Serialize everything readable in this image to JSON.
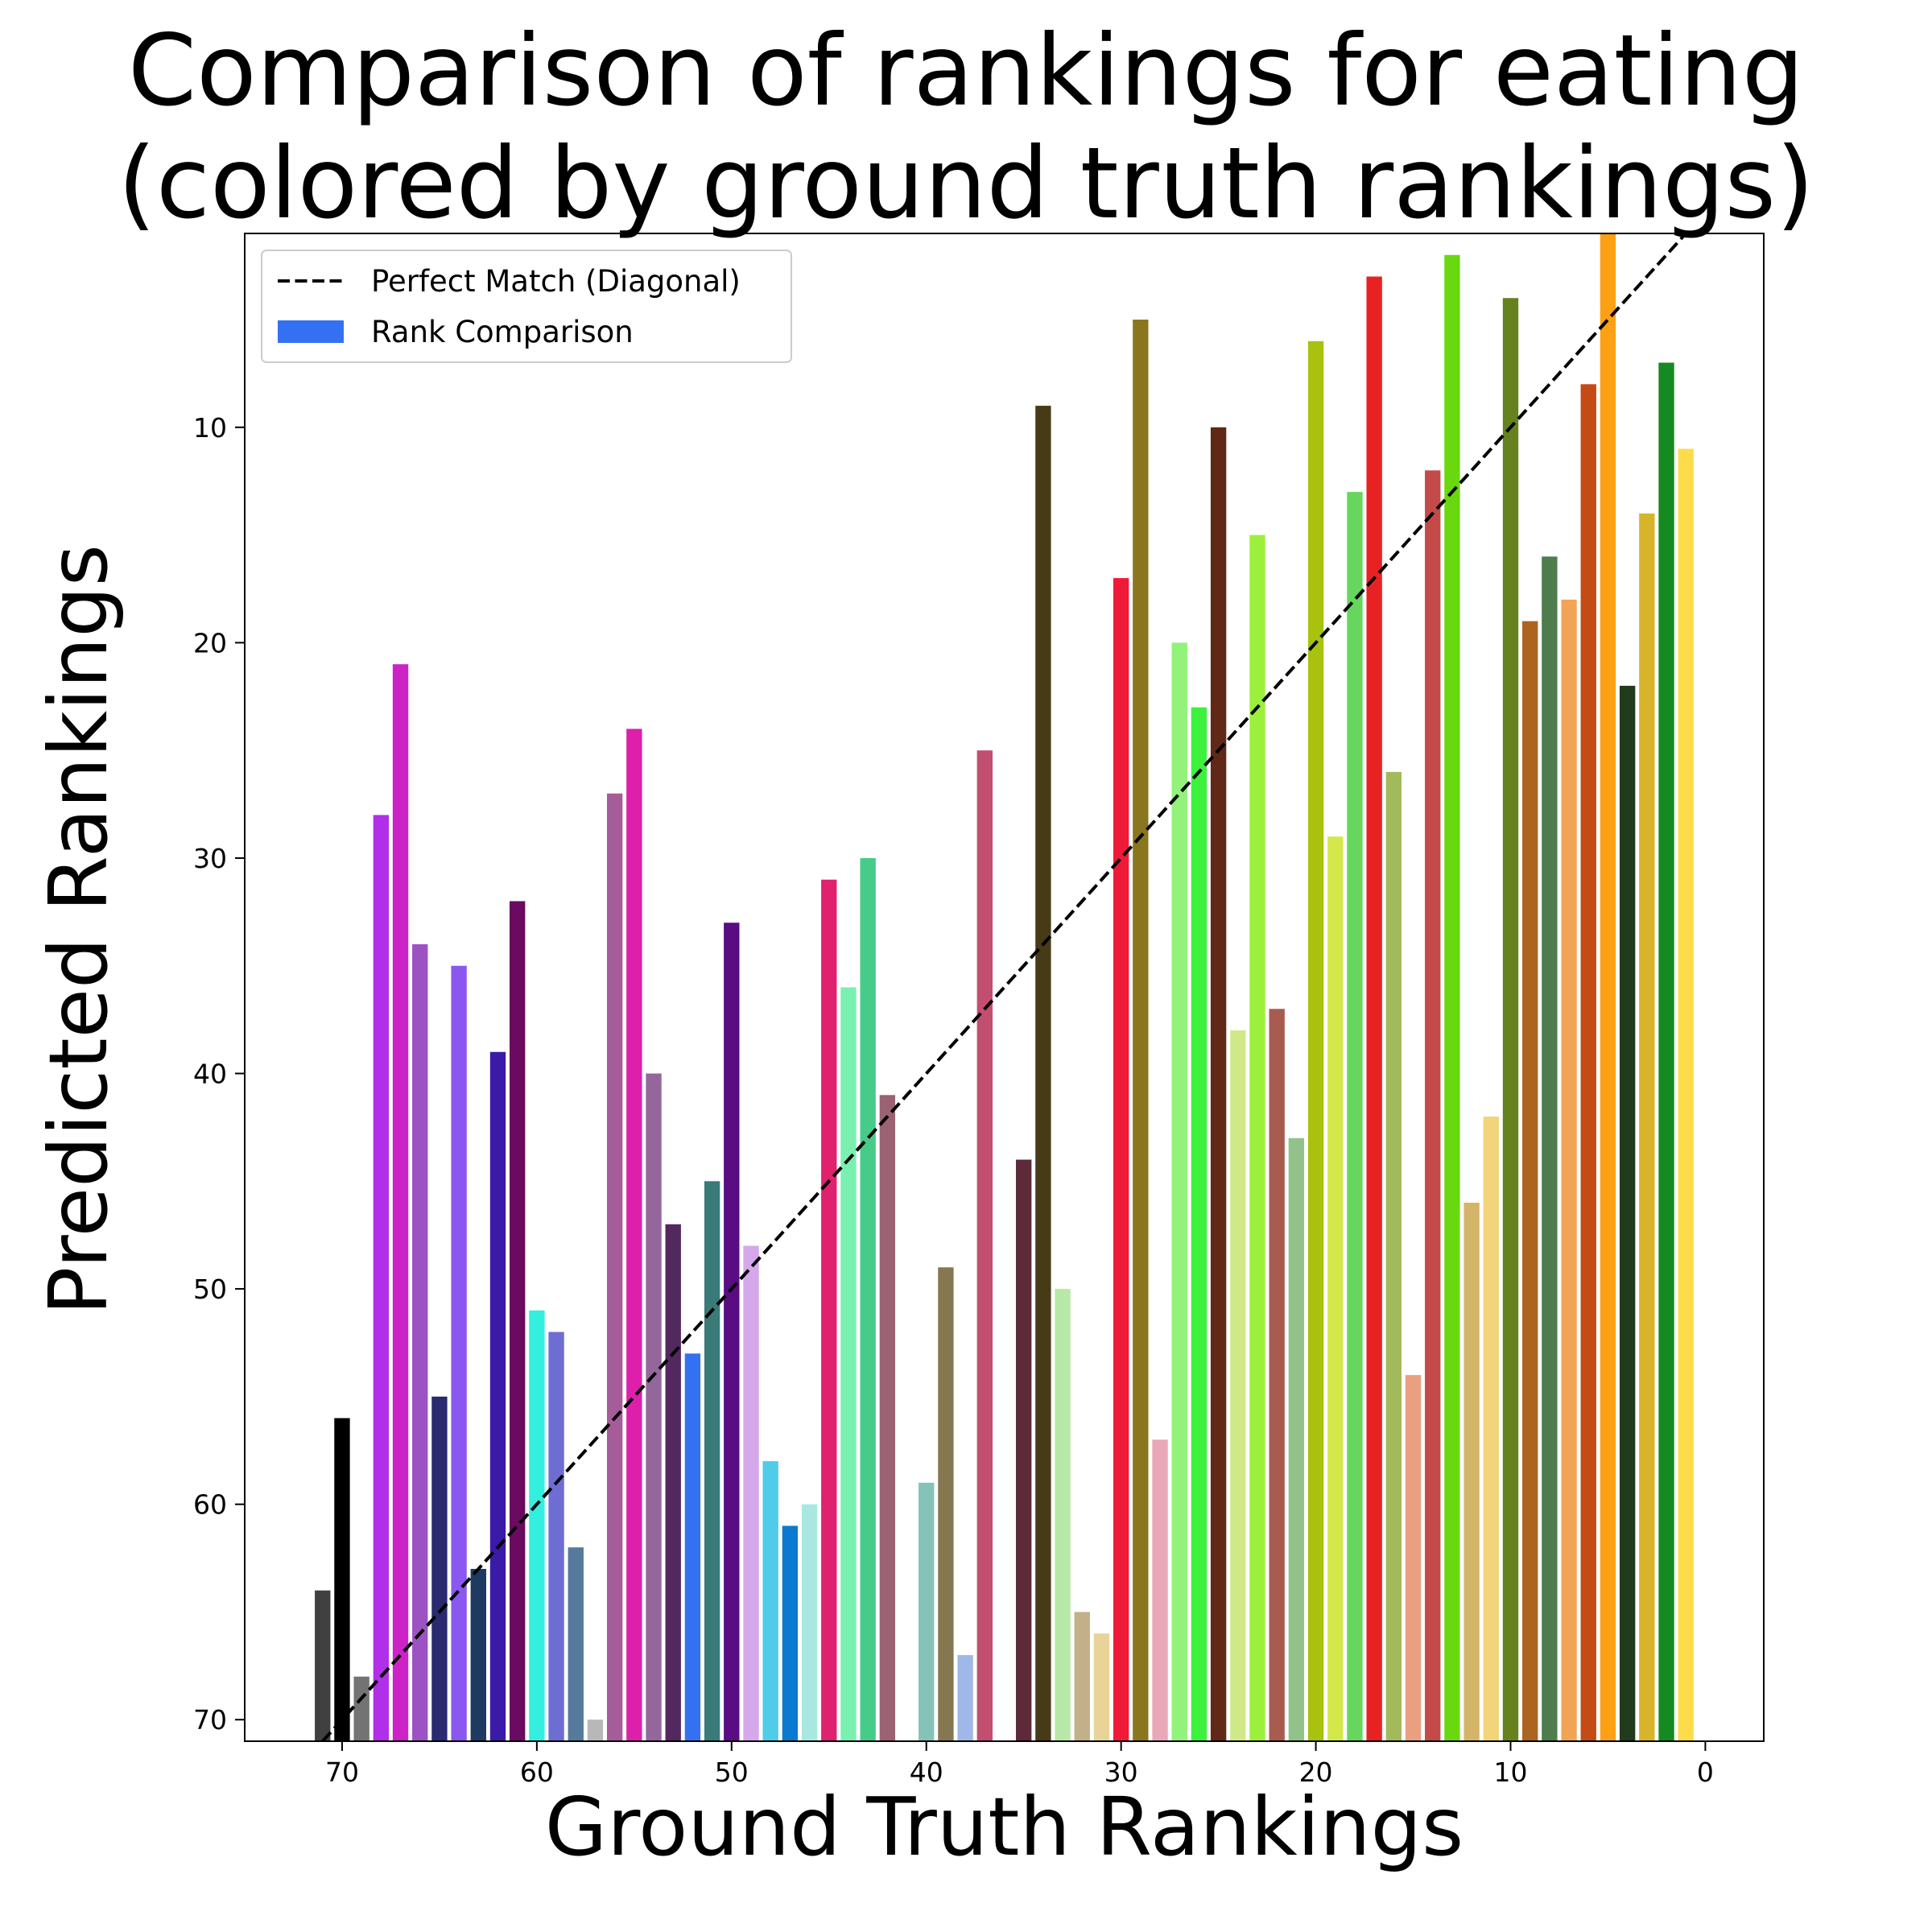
{
  "chart_data": {
    "type": "bar",
    "title_lines": [
      "Comparison of rankings for eating",
      "(colored by ground truth rankings)"
    ],
    "xlabel": "Ground Truth Rankings",
    "ylabel": "Predicted Rankings",
    "xlim": [
      75,
      -3
    ],
    "ylim": [
      71,
      1
    ],
    "y_inverted": true,
    "x_inverted": true,
    "bars_anchor": "bottom",
    "xticks": [
      70,
      60,
      50,
      40,
      30,
      20,
      10,
      0
    ],
    "yticks": [
      10,
      20,
      30,
      40,
      50,
      60,
      70
    ],
    "legend": {
      "placement": "upper-left",
      "entries": [
        {
          "label": "Perfect Match (Diagonal)",
          "kind": "dashed-line",
          "color": "#000000"
        },
        {
          "label": "Rank Comparison",
          "kind": "patch",
          "color": "#3471f2"
        }
      ]
    },
    "diagonal": {
      "style": "dashed",
      "color": "#000000"
    },
    "bars": [
      {
        "x": 71,
        "y": 64,
        "color": "#404040"
      },
      {
        "x": 70,
        "y": 56,
        "color": "#000000"
      },
      {
        "x": 69,
        "y": 68,
        "color": "#737373"
      },
      {
        "x": 68,
        "y": 28,
        "color": "#b12fe8"
      },
      {
        "x": 67,
        "y": 21,
        "color": "#cd22c5"
      },
      {
        "x": 66,
        "y": 34,
        "color": "#9c52c2"
      },
      {
        "x": 65,
        "y": 55,
        "color": "#2a2a70"
      },
      {
        "x": 64,
        "y": 35,
        "color": "#8a58f0"
      },
      {
        "x": 63,
        "y": 63,
        "color": "#1e3a60"
      },
      {
        "x": 62,
        "y": 39,
        "color": "#3a1aa8"
      },
      {
        "x": 61,
        "y": 32,
        "color": "#6a0a60"
      },
      {
        "x": 60,
        "y": 51,
        "color": "#33efe0"
      },
      {
        "x": 59,
        "y": 52,
        "color": "#6d6dd3"
      },
      {
        "x": 58,
        "y": 62,
        "color": "#557a9c"
      },
      {
        "x": 57,
        "y": 70,
        "color": "#b8b8b8"
      },
      {
        "x": 56,
        "y": 27,
        "color": "#a65c98"
      },
      {
        "x": 55,
        "y": 24,
        "color": "#de1fac"
      },
      {
        "x": 54,
        "y": 40,
        "color": "#94679c"
      },
      {
        "x": 53,
        "y": 47,
        "color": "#52285e"
      },
      {
        "x": 52,
        "y": 53,
        "color": "#3471f2"
      },
      {
        "x": 51,
        "y": 45,
        "color": "#3a7a78"
      },
      {
        "x": 50,
        "y": 33,
        "color": "#5a0c82"
      },
      {
        "x": 49,
        "y": 48,
        "color": "#d4a8ea"
      },
      {
        "x": 48,
        "y": 58,
        "color": "#50cbe8"
      },
      {
        "x": 47,
        "y": 61,
        "color": "#0a7ad0"
      },
      {
        "x": 46,
        "y": 60,
        "color": "#a8e8e0"
      },
      {
        "x": 45,
        "y": 31,
        "color": "#e0226e"
      },
      {
        "x": 44,
        "y": 36,
        "color": "#7af0b0"
      },
      {
        "x": 43,
        "y": 30,
        "color": "#46cc88"
      },
      {
        "x": 42,
        "y": 41,
        "color": "#9a6272"
      },
      {
        "x": 40,
        "y": 59,
        "color": "#85c2b8"
      },
      {
        "x": 39,
        "y": 49,
        "color": "#857850"
      },
      {
        "x": 38,
        "y": 67,
        "color": "#a0b8e8"
      },
      {
        "x": 37,
        "y": 25,
        "color": "#c24f70"
      },
      {
        "x": 35,
        "y": 44,
        "color": "#5c2a38"
      },
      {
        "x": 34,
        "y": 9,
        "color": "#473a17"
      },
      {
        "x": 33,
        "y": 50,
        "color": "#b8e8a8"
      },
      {
        "x": 32,
        "y": 65,
        "color": "#c2b088"
      },
      {
        "x": 31,
        "y": 66,
        "color": "#e8d498"
      },
      {
        "x": 30,
        "y": 17,
        "color": "#ee1a38"
      },
      {
        "x": 29,
        "y": 5,
        "color": "#8a761e"
      },
      {
        "x": 28,
        "y": 57,
        "color": "#e8a8b8"
      },
      {
        "x": 27,
        "y": 20,
        "color": "#92f27a"
      },
      {
        "x": 26,
        "y": 23,
        "color": "#3df23d"
      },
      {
        "x": 25,
        "y": 10,
        "color": "#602816"
      },
      {
        "x": 24,
        "y": 38,
        "color": "#d0e888"
      },
      {
        "x": 23,
        "y": 15,
        "color": "#9cf03c"
      },
      {
        "x": 22,
        "y": 37,
        "color": "#a85c50"
      },
      {
        "x": 21,
        "y": 43,
        "color": "#92c28a"
      },
      {
        "x": 20,
        "y": 6,
        "color": "#a8c20e"
      },
      {
        "x": 19,
        "y": 29,
        "color": "#d4e84a"
      },
      {
        "x": 18,
        "y": 13,
        "color": "#66d65e"
      },
      {
        "x": 17,
        "y": 3,
        "color": "#e82222"
      },
      {
        "x": 16,
        "y": 26,
        "color": "#a2ba5c"
      },
      {
        "x": 15,
        "y": 54,
        "color": "#e8a080"
      },
      {
        "x": 14,
        "y": 12,
        "color": "#c44a4a"
      },
      {
        "x": 13,
        "y": 2,
        "color": "#6ad80e"
      },
      {
        "x": 12,
        "y": 46,
        "color": "#d4b468"
      },
      {
        "x": 11,
        "y": 42,
        "color": "#f2d47a"
      },
      {
        "x": 10,
        "y": 4,
        "color": "#65821e"
      },
      {
        "x": 9,
        "y": 19,
        "color": "#ad6420"
      },
      {
        "x": 8,
        "y": 16,
        "color": "#4e7c4c"
      },
      {
        "x": 7,
        "y": 18,
        "color": "#f2a456"
      },
      {
        "x": 6,
        "y": 8,
        "color": "#c44a16"
      },
      {
        "x": 5,
        "y": 1,
        "color": "#fca014"
      },
      {
        "x": 4,
        "y": 22,
        "color": "#213c1c"
      },
      {
        "x": 3,
        "y": 14,
        "color": "#d8b42a"
      },
      {
        "x": 2,
        "y": 7,
        "color": "#158a20"
      },
      {
        "x": 1,
        "y": 11,
        "color": "#fcdc4a"
      }
    ]
  }
}
